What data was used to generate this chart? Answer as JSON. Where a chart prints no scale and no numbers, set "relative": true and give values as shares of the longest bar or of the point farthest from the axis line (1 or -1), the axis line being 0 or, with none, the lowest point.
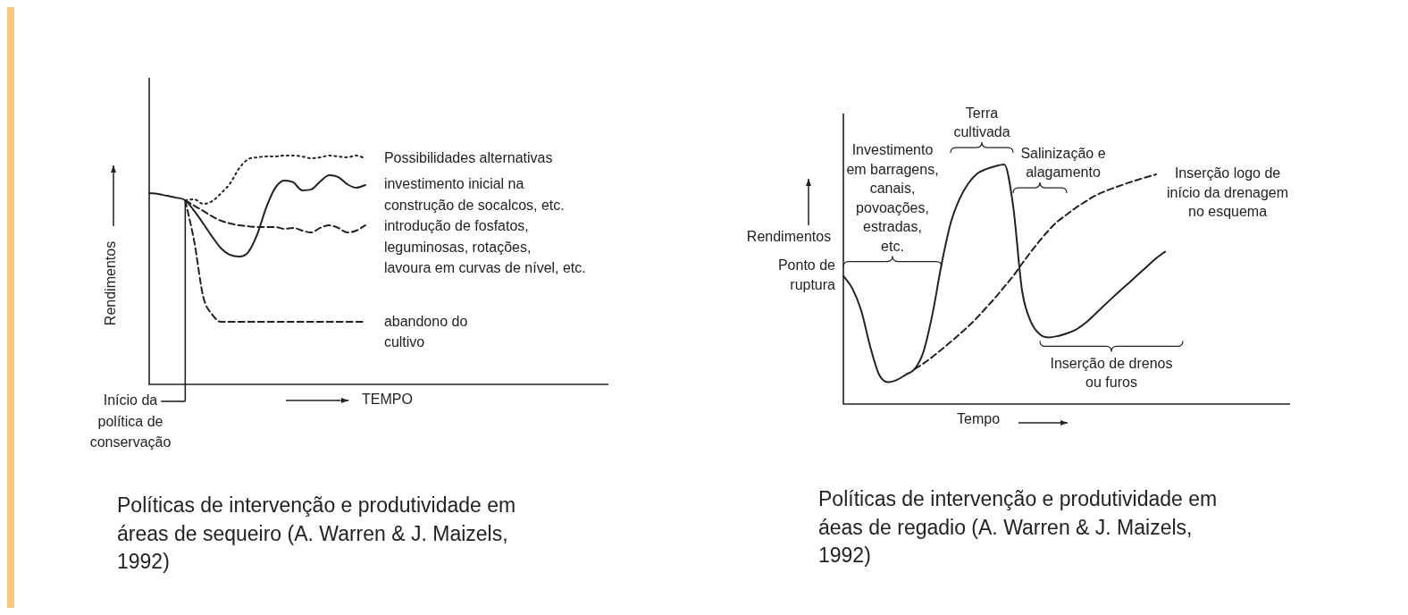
{
  "chart_data": [
    {
      "type": "line",
      "relative": true,
      "xlabel": "TEMPO",
      "ylabel": "Rendimentos",
      "categories": [
        null,
        null,
        null,
        null,
        null,
        null,
        null,
        null,
        null,
        null,
        null,
        null,
        null,
        null,
        null,
        null,
        null,
        null,
        null,
        null,
        null,
        null,
        null,
        null,
        null,
        null,
        null,
        null,
        null,
        null,
        null,
        null,
        null,
        null,
        null,
        null,
        null,
        null,
        null,
        null,
        null,
        null,
        null,
        null,
        null,
        null,
        null,
        null,
        null,
        null,
        null,
        null
      ],
      "series": [
        {
          "name": "Possibilidades alternativas",
          "color": "#222222",
          "line_style": "dotted",
          "values": [
            null,
            null,
            null,
            null,
            0.805,
            0.809,
            0.789,
            0.801,
            0.836,
            0.879,
            0.945,
            0.984,
            0.992,
            0.996,
            0.996,
            1,
            1,
            0.996,
            0.988,
            0.992,
            1,
            0.996,
            0.992,
            1,
            0.988,
            null,
            null,
            null,
            null,
            null,
            null,
            null,
            null,
            null,
            null,
            null,
            null,
            null,
            null,
            null,
            null,
            null,
            null,
            null,
            null,
            null,
            null,
            null,
            null,
            null,
            null,
            null
          ]
        },
        {
          "name": "investimento inicial na\nconstrução de socalcos, etc.",
          "color": "#222222",
          "line_style": "solid",
          "values": [
            0.836,
            0.832,
            0.824,
            0.816,
            0.805,
            0.758,
            0.703,
            0.645,
            0.594,
            0.566,
            0.559,
            0.578,
            0.656,
            0.773,
            0.859,
            0.891,
            0.883,
            0.848,
            0.852,
            0.887,
            0.914,
            0.906,
            0.875,
            0.859,
            0.871,
            null,
            null,
            null,
            null,
            null,
            null,
            null,
            null,
            null,
            null,
            null,
            null,
            null,
            null,
            null,
            null,
            null,
            null,
            null,
            null,
            null,
            null,
            null,
            null,
            null,
            null,
            null
          ]
        },
        {
          "name": "introdução de fosfatos,\nleguminosas, rotações,\nlavoura em curvas de nível, etc.",
          "color": "#222222",
          "line_style": "dashed",
          "values": [
            null,
            null,
            null,
            null,
            0.805,
            0.781,
            0.758,
            0.734,
            0.715,
            0.703,
            0.695,
            0.691,
            0.688,
            0.688,
            0.688,
            0.68,
            0.684,
            0.672,
            0.664,
            0.684,
            0.695,
            0.684,
            0.664,
            0.672,
            0.695,
            null,
            null,
            null,
            null,
            null,
            null,
            null,
            null,
            null,
            null,
            null,
            null,
            null,
            null,
            null,
            null,
            null,
            null,
            null,
            null,
            null,
            null,
            null,
            null,
            null,
            null,
            null
          ]
        },
        {
          "name": "abandono do\ncultivo",
          "color": "#222222",
          "line_style": "dashed",
          "values": [
            null,
            null,
            null,
            null,
            0.805,
            0.625,
            0.383,
            0.305,
            0.273,
            0.273,
            0.273,
            0.273,
            0.273,
            0.273,
            0.273,
            0.273,
            0.273,
            0.273,
            0.273,
            0.273,
            0.273,
            0.273,
            0.273,
            0.273,
            0.273,
            null,
            null,
            null,
            null,
            null,
            null,
            null,
            null,
            null,
            null,
            null,
            null,
            null,
            null,
            null,
            null,
            null,
            null,
            null,
            null,
            null,
            null,
            null,
            null,
            null,
            null,
            null
          ]
        }
      ],
      "annotations": [
        "Início da\npolítica de\nconservação",
        "Políticas de intervenção e produtividade em\náreas de sequeiro (A. Warren & J. Maizels,\n1992)"
      ]
    },
    {
      "type": "line",
      "relative": true,
      "xlabel": "Tempo",
      "ylabel": "Rendimentos",
      "categories": [
        null,
        null,
        null,
        null,
        null,
        null,
        null,
        null,
        null,
        null,
        null,
        null,
        null,
        null,
        null,
        null,
        null,
        null,
        null,
        null,
        null,
        null,
        null,
        null,
        null,
        null,
        null,
        null,
        null,
        null,
        null,
        null,
        null,
        null,
        null,
        null,
        null,
        null,
        null,
        null,
        null,
        null,
        null,
        null,
        null,
        null,
        null,
        null,
        null,
        null,
        null
      ],
      "series": [
        {
          "color": "#222222",
          "line_style": "solid",
          "values": [
            0.535,
            0.483,
            0.39,
            0.241,
            0.123,
            0.091,
            0.101,
            0.123,
            0.147,
            0.222,
            0.381,
            0.586,
            0.754,
            0.856,
            0.922,
            0.963,
            0.981,
            0.993,
            1,
            0.828,
            0.474,
            0.343,
            0.291,
            0.278,
            0.284,
            0.295,
            0.31,
            0.336,
            0.369,
            0.405,
            0.44,
            0.474,
            0.507,
            0.541,
            0.575,
            0.608,
            0.636,
            null,
            null,
            null,
            null,
            null,
            null,
            null,
            null,
            null,
            null,
            null,
            null,
            null,
            null
          ]
        },
        {
          "name": "Inserção logo de\ninício da drenagem\nno esquema",
          "color": "#222222",
          "line_style": "dashed",
          "values": [
            null,
            null,
            null,
            null,
            null,
            null,
            null,
            null,
            0.147,
            0.17,
            0.198,
            0.228,
            0.259,
            0.291,
            0.325,
            0.362,
            0.403,
            0.444,
            0.489,
            0.534,
            0.586,
            0.636,
            0.683,
            0.726,
            0.763,
            0.791,
            0.819,
            0.843,
            0.866,
            0.884,
            0.899,
            0.912,
            0.925,
            0.937,
            0.948,
            0.959,
            null,
            null,
            null,
            null,
            null,
            null,
            null,
            null,
            null,
            null,
            null,
            null,
            null,
            null,
            null
          ]
        }
      ],
      "annotations": [
        "Ponto de\nruptura",
        "Investimento\nem barragens,\ncanais,\npovoações,\nestradas,\netc.",
        "Terra\ncultivada",
        "Salinização e\nalagamento",
        "Inserção de drenos\nou furos",
        "Políticas de intervenção e produtividade em\náeas de regadio (A. Warren & J. Maizels,\n1992)"
      ]
    }
  ]
}
